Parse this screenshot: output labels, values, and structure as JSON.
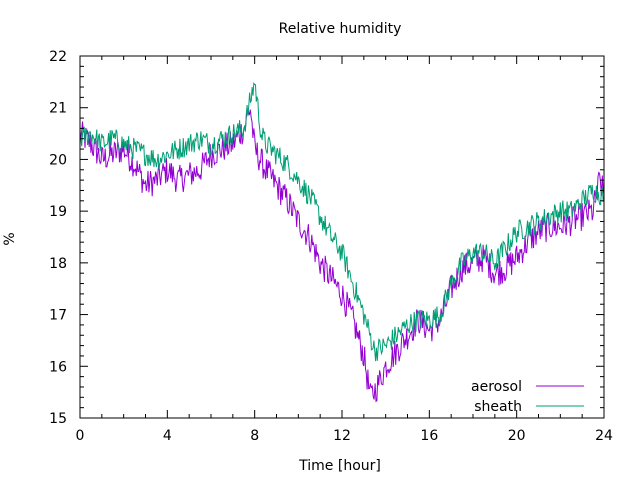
{
  "chart_data": {
    "type": "line",
    "title": "Relative humidity",
    "xlabel": "Time [hour]",
    "ylabel": "%",
    "xlim": [
      0,
      24
    ],
    "ylim": [
      15,
      22
    ],
    "x_ticks": [
      0,
      4,
      8,
      12,
      16,
      20,
      24
    ],
    "y_ticks": [
      15,
      16,
      17,
      18,
      19,
      20,
      21,
      22
    ],
    "x_tick_labels": [
      "0",
      "4",
      "8",
      "12",
      "16",
      "20",
      "24"
    ],
    "y_tick_labels": [
      "15",
      "16",
      "17",
      "18",
      "19",
      "20",
      "21",
      "22"
    ],
    "grid": false,
    "legend_position": "bottom-right",
    "series": [
      {
        "name": "aerosol",
        "color": "#9400d3",
        "points": [
          [
            0,
            20.5
          ],
          [
            0.5,
            20.3
          ],
          [
            1,
            20.0
          ],
          [
            1.5,
            20.1
          ],
          [
            2,
            20.2
          ],
          [
            2.5,
            19.9
          ],
          [
            3,
            19.5
          ],
          [
            3.5,
            19.6
          ],
          [
            4,
            19.8
          ],
          [
            4.5,
            19.6
          ],
          [
            5,
            19.7
          ],
          [
            5.5,
            19.8
          ],
          [
            6,
            20.1
          ],
          [
            6.5,
            20.2
          ],
          [
            7,
            20.3
          ],
          [
            7.5,
            20.6
          ],
          [
            7.8,
            21.0
          ],
          [
            8,
            20.2
          ],
          [
            8.5,
            19.8
          ],
          [
            9,
            19.5
          ],
          [
            9.5,
            19.2
          ],
          [
            10,
            18.8
          ],
          [
            10.5,
            18.5
          ],
          [
            11,
            18.0
          ],
          [
            11.5,
            17.7
          ],
          [
            12,
            17.4
          ],
          [
            12.5,
            16.9
          ],
          [
            13,
            16.2
          ],
          [
            13.3,
            15.4
          ],
          [
            13.6,
            15.6
          ],
          [
            14,
            16.0
          ],
          [
            14.5,
            16.3
          ],
          [
            15,
            16.6
          ],
          [
            15.5,
            16.9
          ],
          [
            16,
            16.7
          ],
          [
            16.5,
            16.9
          ],
          [
            17,
            17.5
          ],
          [
            17.5,
            17.9
          ],
          [
            18,
            18.0
          ],
          [
            18.5,
            18.1
          ],
          [
            19,
            17.8
          ],
          [
            19.5,
            17.9
          ],
          [
            20,
            18.1
          ],
          [
            20.5,
            18.4
          ],
          [
            21,
            18.6
          ],
          [
            21.5,
            18.7
          ],
          [
            22,
            18.7
          ],
          [
            22.5,
            18.8
          ],
          [
            23,
            18.9
          ],
          [
            23.5,
            19.0
          ],
          [
            23.8,
            19.6
          ],
          [
            24,
            19.3
          ]
        ]
      },
      {
        "name": "sheath",
        "color": "#009e73",
        "points": [
          [
            0,
            20.4
          ],
          [
            0.5,
            20.5
          ],
          [
            1,
            20.3
          ],
          [
            1.5,
            20.4
          ],
          [
            2,
            20.3
          ],
          [
            2.5,
            20.2
          ],
          [
            3,
            20.1
          ],
          [
            3.5,
            20.0
          ],
          [
            4,
            20.1
          ],
          [
            4.5,
            20.2
          ],
          [
            5,
            20.3
          ],
          [
            5.5,
            20.4
          ],
          [
            6,
            20.3
          ],
          [
            6.5,
            20.4
          ],
          [
            7,
            20.5
          ],
          [
            7.5,
            20.6
          ],
          [
            8,
            21.5
          ],
          [
            8.3,
            20.5
          ],
          [
            8.5,
            20.3
          ],
          [
            9,
            20.1
          ],
          [
            9.5,
            19.9
          ],
          [
            10,
            19.6
          ],
          [
            10.5,
            19.3
          ],
          [
            11,
            18.9
          ],
          [
            11.5,
            18.5
          ],
          [
            12,
            18.2
          ],
          [
            12.5,
            17.6
          ],
          [
            13,
            17.0
          ],
          [
            13.5,
            16.3
          ],
          [
            14,
            16.4
          ],
          [
            14.5,
            16.6
          ],
          [
            15,
            16.8
          ],
          [
            15.5,
            16.9
          ],
          [
            16,
            16.9
          ],
          [
            16.5,
            17.0
          ],
          [
            17,
            17.6
          ],
          [
            17.5,
            18.0
          ],
          [
            18,
            18.2
          ],
          [
            18.5,
            18.2
          ],
          [
            19,
            18.0
          ],
          [
            19.5,
            18.3
          ],
          [
            20,
            18.6
          ],
          [
            20.5,
            18.7
          ],
          [
            21,
            18.8
          ],
          [
            21.5,
            18.9
          ],
          [
            22,
            19.0
          ],
          [
            22.5,
            19.0
          ],
          [
            23,
            19.2
          ],
          [
            23.5,
            19.4
          ],
          [
            24,
            19.3
          ]
        ]
      }
    ]
  }
}
